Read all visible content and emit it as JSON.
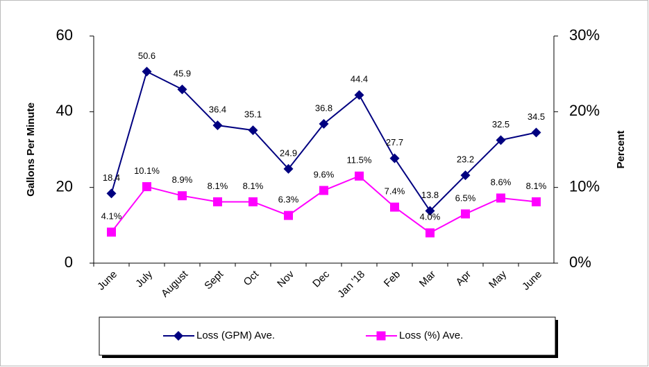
{
  "chart_data": {
    "type": "line",
    "y_label": "Gallons Per Minute",
    "y2_label": "Percent",
    "categories": [
      "June",
      "July",
      "August",
      "Sept",
      "Oct",
      "Nov",
      "Dec",
      "Jan '18",
      "Feb",
      "Mar",
      "Apr",
      "May",
      "June"
    ],
    "series": [
      {
        "name": "Loss (GPM) Ave.",
        "color": "#000080",
        "marker": "diamond",
        "values": [
          18.4,
          50.6,
          45.9,
          36.4,
          35.1,
          24.9,
          36.8,
          44.4,
          27.7,
          13.8,
          23.2,
          32.5,
          34.5
        ]
      },
      {
        "name": "Loss (%) Ave.",
        "color": "#ff00ff",
        "marker": "square",
        "axis": "y2",
        "values": [
          4.1,
          10.1,
          8.9,
          8.1,
          8.1,
          6.3,
          9.6,
          11.5,
          7.4,
          4.0,
          6.5,
          8.6,
          8.1
        ],
        "value_labels": [
          "4.1%",
          "10.1%",
          "8.9%",
          "8.1%",
          "8.1%",
          "6.3%",
          "9.6%",
          "11.5%",
          "7.4%",
          "4.0%",
          "6.5%",
          "8.6%",
          "8.1%"
        ]
      }
    ],
    "ylim": [
      0,
      60
    ],
    "yticks": [
      0,
      20,
      40,
      60
    ],
    "y2lim": [
      0,
      30
    ],
    "y2ticks": [
      {
        "value": 0,
        "label": "0%"
      },
      {
        "value": 10,
        "label": "10%"
      },
      {
        "value": 20,
        "label": "20%"
      },
      {
        "value": 30,
        "label": "30%"
      }
    ],
    "legend": "bottom"
  }
}
